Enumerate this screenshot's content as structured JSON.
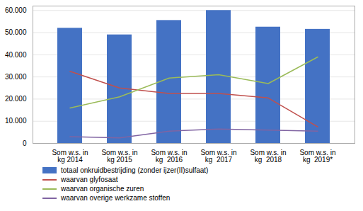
{
  "chart_data": {
    "type": "bar",
    "categories": [
      "Som w.s. in\nkg 2014",
      "Som w.s. in\nkg 2015",
      "Som w.s. in\nkg  2016",
      "Som w.s. in\nkg  2017",
      "Som w.s. in\nkg  2018",
      "Som w.s. in\nkg  2019*"
    ],
    "series": [
      {
        "name": "totaal onkruidbestrijding (zonder ijzer(II)sulfaat)",
        "type": "bar",
        "color": "#4472C4",
        "values": [
          52000,
          49000,
          55500,
          60000,
          52500,
          51500
        ]
      },
      {
        "name": "waarvan glyfosaat",
        "type": "line",
        "color": "#C0504D",
        "values": [
          32500,
          25000,
          22500,
          22500,
          20500,
          7500
        ]
      },
      {
        "name": "waarvan organische zuren",
        "type": "line",
        "color": "#9BBB59",
        "values": [
          16000,
          21000,
          29500,
          31000,
          27000,
          39000
        ]
      },
      {
        "name": "waarvan overige werkzame stoffen",
        "type": "line",
        "color": "#8064A2",
        "values": [
          3000,
          2500,
          5500,
          6500,
          6000,
          5500
        ]
      }
    ],
    "ylim": [
      0,
      62000
    ],
    "yticks": [
      0,
      {
        "value": 10000,
        "label": "10.000"
      },
      {
        "value": 20000,
        "label": "20.000"
      },
      {
        "value": 30000,
        "label": "30.000"
      },
      {
        "value": 40000,
        "label": "40.000"
      },
      {
        "value": 50000,
        "label": "50.000"
      },
      {
        "value": 60000,
        "label": "60.000"
      }
    ],
    "grid": true,
    "legend": "lower left"
  }
}
